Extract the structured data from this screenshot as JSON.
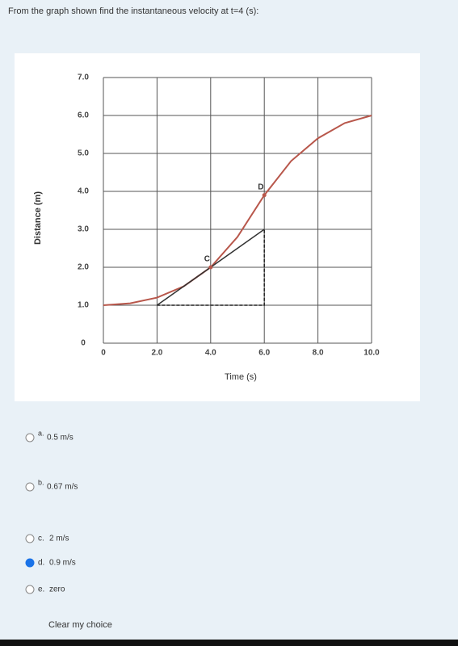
{
  "question": "From the graph shown find the instantaneous velocity at t=4 (s):",
  "chart_data": {
    "type": "line",
    "x": [
      0,
      1,
      2,
      3,
      4,
      5,
      6,
      7,
      8,
      9,
      10
    ],
    "series": [
      {
        "color": "#b8574b",
        "values": [
          1.0,
          1.05,
          1.2,
          1.5,
          2.0,
          2.8,
          3.9,
          4.8,
          5.4,
          5.8,
          6.0
        ]
      }
    ],
    "tangent": {
      "x": [
        2,
        6
      ],
      "y": [
        1.0,
        3.0
      ],
      "color": "#333333"
    },
    "points": [
      {
        "label": "C",
        "x": 4,
        "y": 2.0
      },
      {
        "label": "D",
        "x": 6,
        "y": 3.9
      }
    ],
    "xlim": [
      0,
      10
    ],
    "ylim": [
      0,
      7
    ],
    "xticks": [
      0,
      {
        "value": 2,
        "label": "2.0"
      },
      {
        "value": 4,
        "label": "4.0"
      },
      {
        "value": 6,
        "label": "6.0"
      },
      {
        "value": 8,
        "label": "8.0"
      },
      {
        "value": 10,
        "label": "10.0"
      }
    ],
    "yticks": [
      0,
      {
        "value": 1,
        "label": "1.0"
      },
      {
        "value": 2,
        "label": "2.0"
      },
      {
        "value": 3,
        "label": "3.0"
      },
      {
        "value": 4,
        "label": "4.0"
      },
      {
        "value": 5,
        "label": "5.0"
      },
      {
        "value": 6,
        "label": "6.0"
      },
      {
        "value": 7,
        "label": "7.0"
      }
    ],
    "xlabel": "Time (s)",
    "ylabel": "Distance (m)",
    "grid": true
  },
  "options": [
    {
      "letter": "a.",
      "text": "0.5 m/s"
    },
    {
      "letter": "b.",
      "text": "0.67 m/s"
    },
    {
      "letter": "c.",
      "text": "2 m/s"
    },
    {
      "letter": "d.",
      "text": "0.9 m/s"
    },
    {
      "letter": "e.",
      "text": "zero"
    }
  ],
  "selected": 3,
  "clear_link": "Clear my choice"
}
